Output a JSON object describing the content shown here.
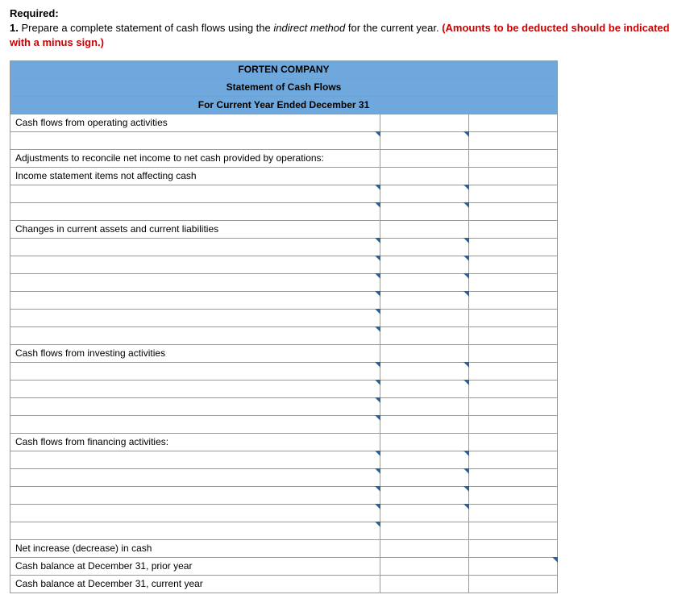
{
  "instructions": {
    "required_label": "Required:",
    "item_number": "1.",
    "text_before": "Prepare a complete statement of cash flows using the ",
    "italic_phrase": "indirect method",
    "text_after": " for the current year. ",
    "red_note": "(Amounts to be deducted should be indicated with a minus sign.)"
  },
  "statement": {
    "company": "FORTEN COMPANY",
    "title": "Statement of Cash Flows",
    "period": "For Current Year Ended December 31",
    "sections": {
      "operating_header": "Cash flows from operating activities",
      "adjustments_header": "Adjustments to reconcile net income to net cash provided by operations:",
      "non_cash_header": "Income statement items not affecting cash",
      "changes_header": "Changes in current assets and current liabilities",
      "investing_header": "Cash flows from investing activities",
      "financing_header": "Cash flows from financing activities:",
      "net_change": "Net increase (decrease) in cash",
      "prior_balance": "Cash balance at December 31, prior year",
      "current_balance": "Cash balance at December 31, current year"
    }
  },
  "colors": {
    "header_bg": "#6fa8dc",
    "border": "#999999",
    "marker": "#2b5fa4",
    "red_text": "#cc0000"
  }
}
